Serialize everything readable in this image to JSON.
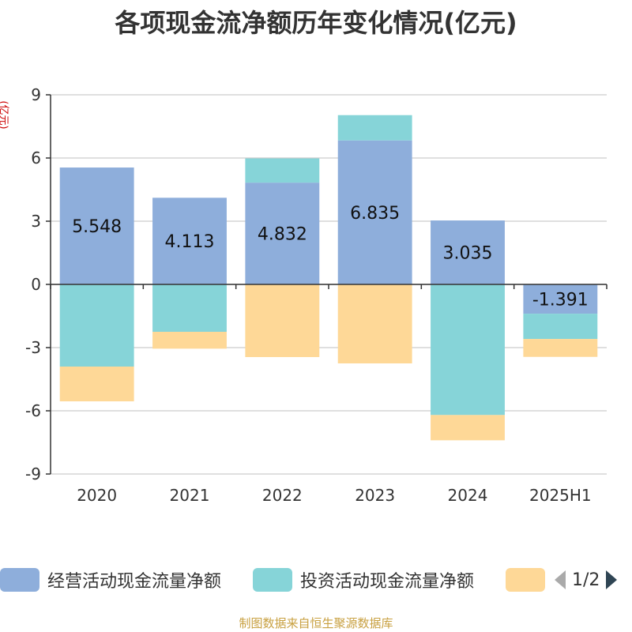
{
  "title": "各项现金流净额历年变化情况(亿元)",
  "source": "制图数据来自恒生聚源数据库",
  "pager": {
    "text": "1/2",
    "prev_icon": "triangle-left-icon",
    "next_icon": "triangle-right-icon"
  },
  "colors": {
    "operating": "#8eaedb",
    "investing": "#86d4d8",
    "financing": "#fed897"
  },
  "chart_data": {
    "type": "bar",
    "stacked": true,
    "title": "各项现金流净额历年变化情况(亿元)",
    "ylabel": "(亿元)",
    "ylim": [
      -9,
      9
    ],
    "yticks": [
      9,
      6,
      3,
      0,
      -3,
      -6,
      -9
    ],
    "grid": true,
    "legend_position": "bottom",
    "categories": [
      "2020",
      "2021",
      "2022",
      "2023",
      "2024",
      "2025H1"
    ],
    "series": [
      {
        "name": "经营活动现金流量净额",
        "color": "#8eaedb",
        "values": [
          5.548,
          4.113,
          4.832,
          6.835,
          3.035,
          -1.391
        ],
        "labels": [
          "5.548",
          "4.113",
          "4.832",
          "6.835",
          "3.035",
          "-1.391"
        ]
      },
      {
        "name": "投资活动现金流量净额",
        "color": "#86d4d8",
        "values": [
          -3.9,
          -2.25,
          1.15,
          1.2,
          -6.2,
          -1.2
        ]
      },
      {
        "name": "",
        "color": "#fed897",
        "values": [
          -1.65,
          -0.8,
          -3.45,
          -3.75,
          -1.2,
          -0.85
        ]
      }
    ]
  }
}
